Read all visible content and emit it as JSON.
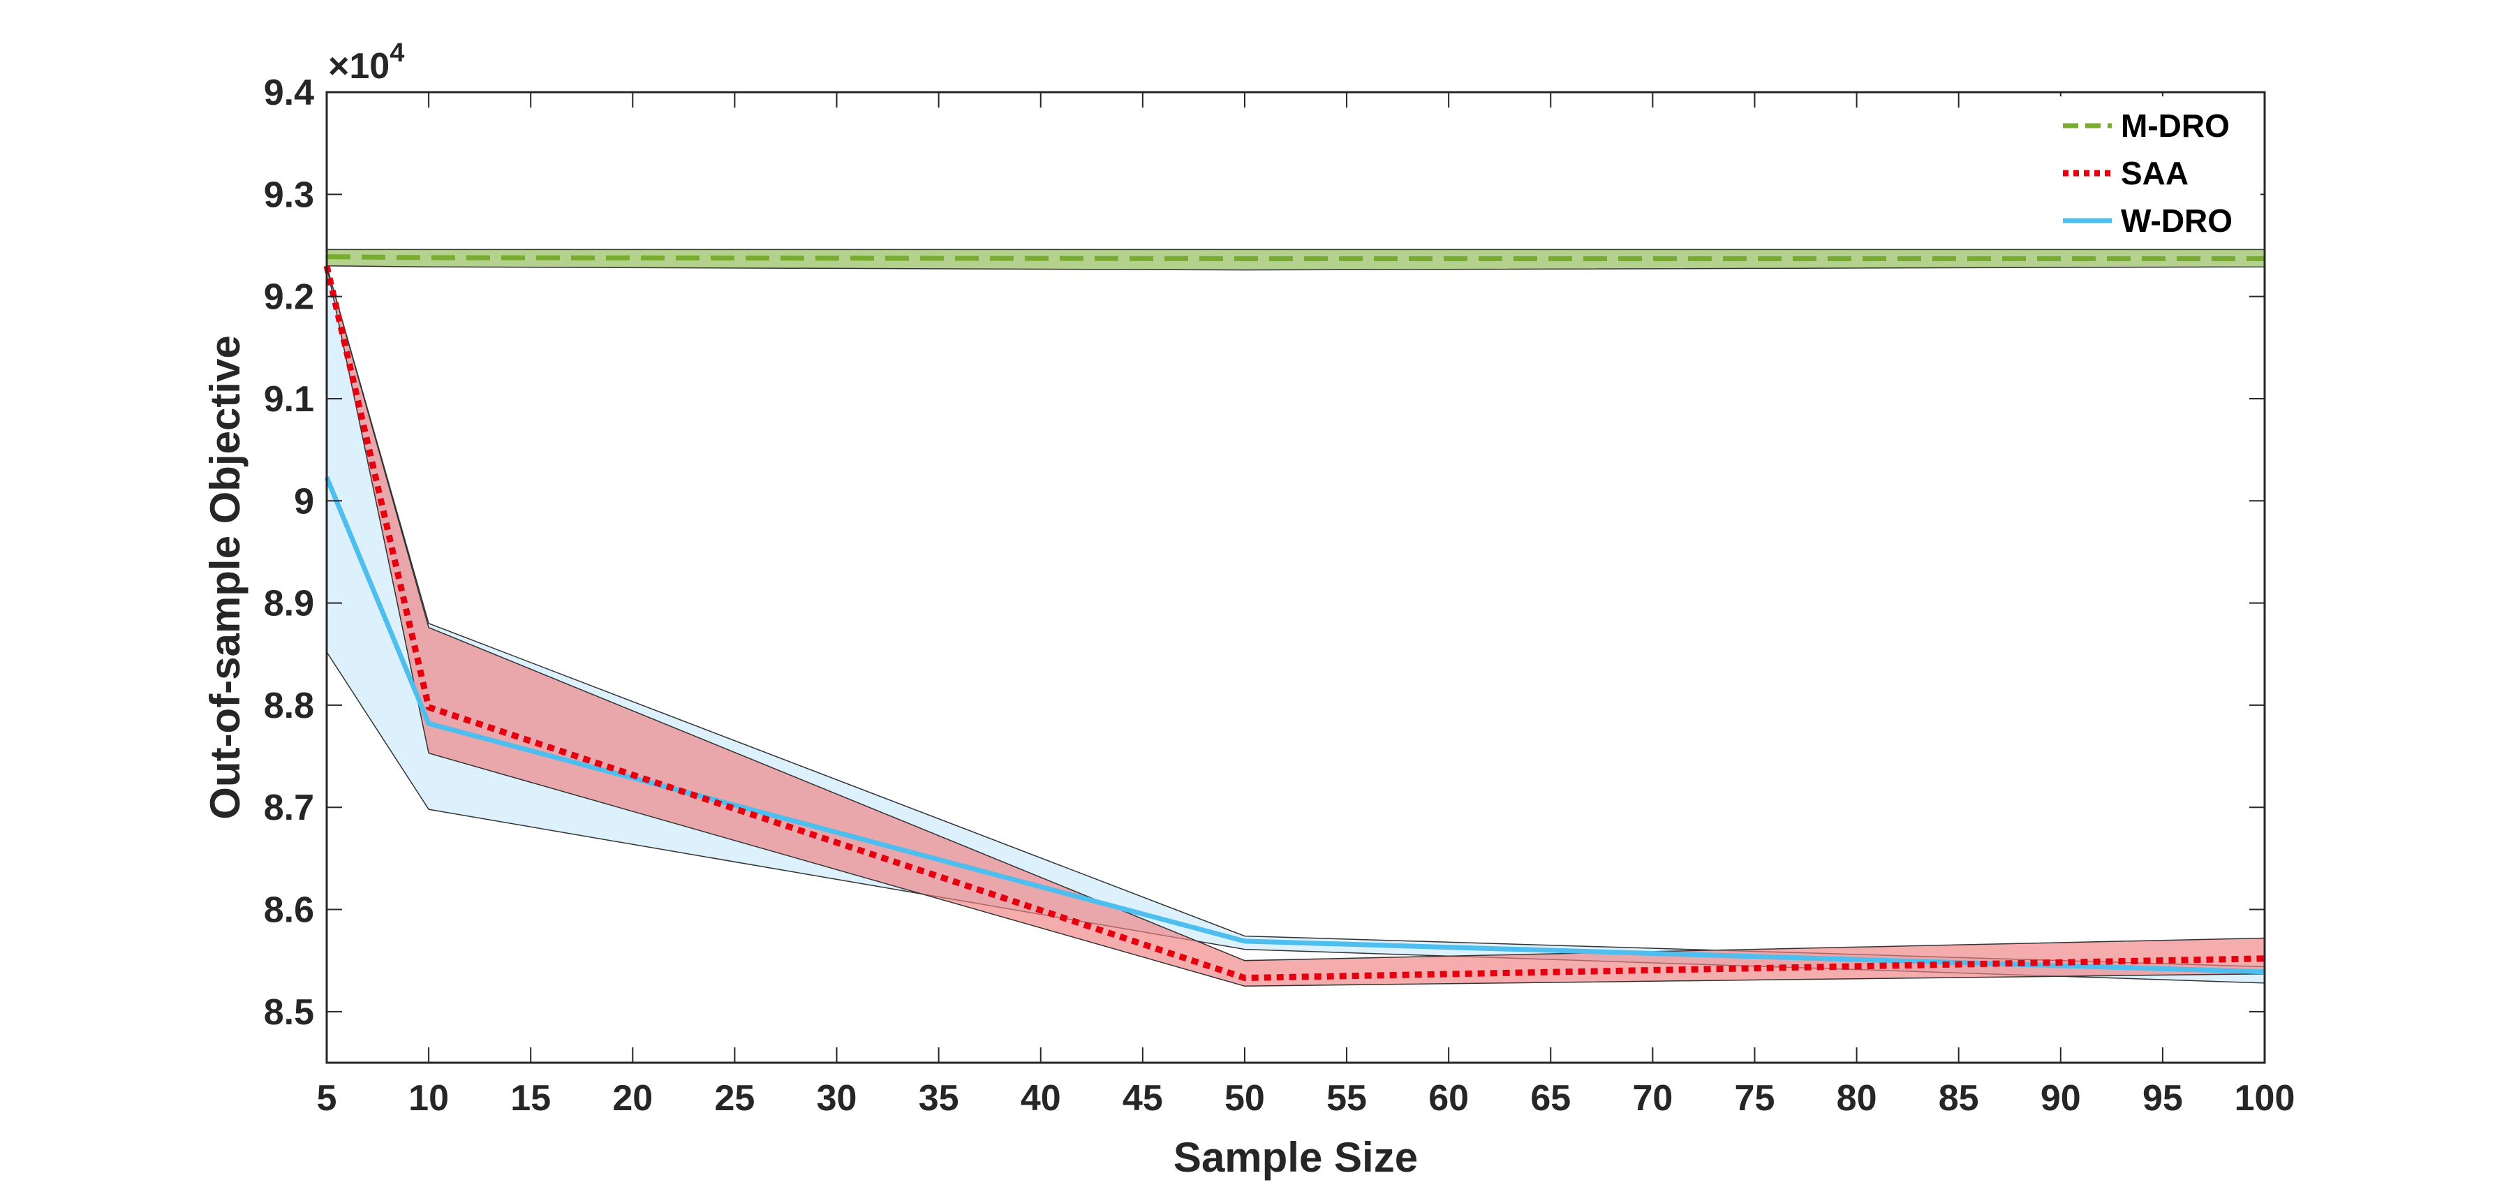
{
  "chart_data": {
    "type": "line",
    "title": "",
    "xlabel": "Sample Size",
    "ylabel": "Out-of-sample Objective",
    "y_exponent_label": "×10",
    "y_exponent_power": "4",
    "xlim": [
      5,
      100
    ],
    "ylim": [
      84500,
      94000
    ],
    "x_ticks": [
      5,
      10,
      15,
      20,
      25,
      30,
      35,
      40,
      45,
      50,
      55,
      60,
      65,
      70,
      75,
      80,
      85,
      90,
      95,
      100
    ],
    "x_tick_labels": [
      "5",
      "10",
      "15",
      "20",
      "25",
      "30",
      "35",
      "40",
      "45",
      "50",
      "55",
      "60",
      "65",
      "70",
      "75",
      "80",
      "85",
      "90",
      "95",
      "100"
    ],
    "y_ticks": [
      85000,
      86000,
      87000,
      88000,
      89000,
      90000,
      91000,
      92000,
      93000,
      94000
    ],
    "y_tick_labels": [
      "8.5",
      "8.6",
      "8.7",
      "8.8",
      "8.9",
      "9",
      "9.1",
      "9.2",
      "9.3",
      "9.4"
    ],
    "grid": false,
    "legend_position": "top-right",
    "x": [
      5,
      10,
      50,
      100
    ],
    "series": [
      {
        "name": "M-DRO",
        "color": "#77AC30",
        "style": "dashed",
        "values": [
          92390,
          92380,
          92370,
          92370
        ],
        "band_lower": [
          92300,
          92290,
          92260,
          92290
        ],
        "band_upper": [
          92460,
          92460,
          92460,
          92460
        ],
        "band_color": "#77AC30"
      },
      {
        "name": "SAA",
        "color": "#E6000F",
        "style": "dotted",
        "values": [
          92300,
          87980,
          85330,
          85520
        ],
        "band_lower": [
          92300,
          87530,
          85250,
          85370
        ],
        "band_upper": [
          92300,
          88760,
          85500,
          85720
        ],
        "band_color": "#F08080"
      },
      {
        "name": "W-DRO",
        "color": "#4DBEEE",
        "style": "solid",
        "values": [
          90230,
          87820,
          85690,
          85390
        ],
        "band_lower": [
          88520,
          86980,
          85610,
          85280
        ],
        "band_upper": [
          92300,
          88800,
          85740,
          85440
        ],
        "band_color": "#BFE6F7"
      }
    ]
  }
}
